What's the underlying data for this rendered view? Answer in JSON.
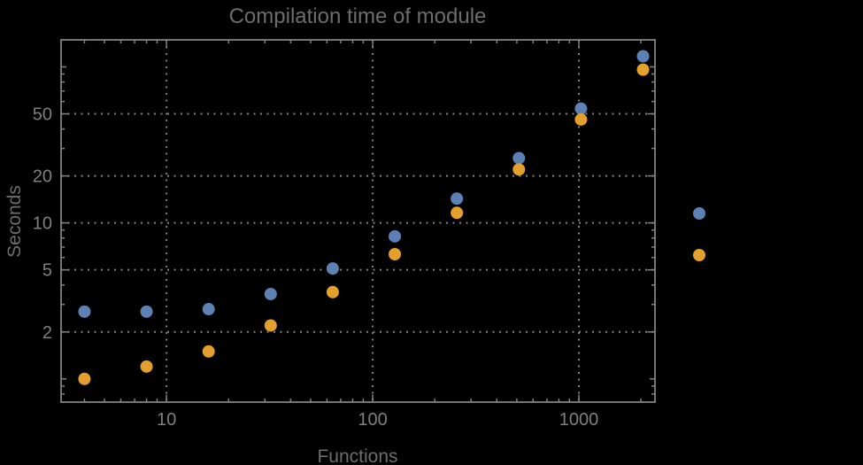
{
  "chart_data": {
    "type": "scatter",
    "title": "Compilation time of module",
    "xlabel": "Functions",
    "ylabel": "Seconds",
    "x_scale": "log",
    "y_scale": "log",
    "xlim": [
      3.08,
      2340
    ],
    "ylim": [
      0.71,
      149
    ],
    "grid": true,
    "x_ticks": [
      10,
      100,
      1000
    ],
    "x_tick_labels": [
      "10",
      "100",
      "1000"
    ],
    "y_ticks": [
      2,
      5,
      10,
      20,
      50
    ],
    "y_tick_labels": [
      "2",
      "5",
      "10",
      "20",
      "50"
    ],
    "x": [
      4,
      8,
      16,
      32,
      64,
      128,
      256,
      512,
      1024,
      2048
    ],
    "series": [
      {
        "label": "",
        "marker": "disk",
        "color": "#5e81b5",
        "values": [
          2.7,
          2.7,
          2.8,
          3.5,
          5.1,
          8.2,
          14.3,
          26,
          54,
          117
        ]
      },
      {
        "label": "",
        "marker": "disk",
        "color": "#e3a02d",
        "values": [
          1.0,
          1.2,
          1.5,
          2.2,
          3.6,
          6.3,
          11.6,
          22,
          46,
          96
        ]
      }
    ],
    "legend": {
      "position": "right-of-plot",
      "labels_visible": false,
      "entries": [
        {
          "label": "",
          "color": "#5e81b5"
        },
        {
          "label": "",
          "color": "#e3a02d"
        }
      ]
    }
  },
  "colors": {
    "background": "#000000",
    "frame": "#828282",
    "grid": "#828282",
    "title_text": "#6d6d6d",
    "tick_text": "#7f7f7f"
  }
}
